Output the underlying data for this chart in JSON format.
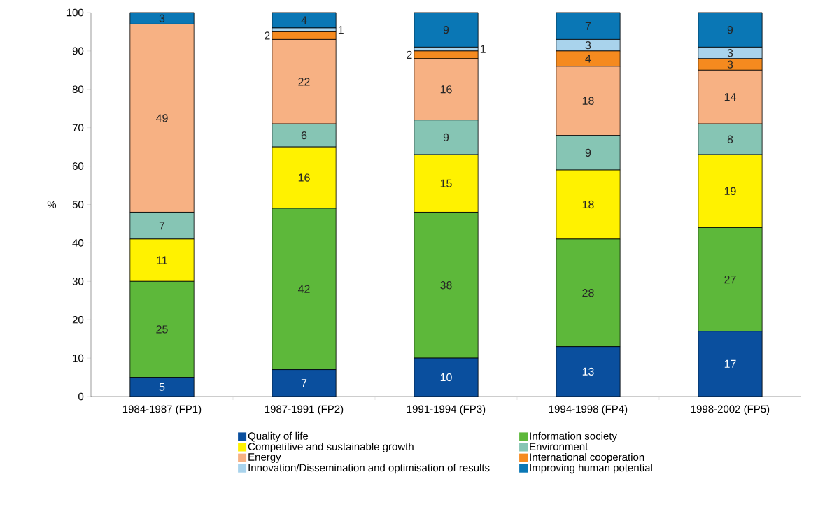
{
  "chart_data": {
    "type": "bar",
    "stacked": true,
    "ylabel": "%",
    "categories": [
      "1984-1987 (FP1)",
      "1987-1991 (FP2)",
      "1991-1994 (FP3)",
      "1994-1998 (FP4)",
      "1998-2002 (FP5)"
    ],
    "series": [
      {
        "name": "Quality of life",
        "color": "#0a4f9e",
        "values": [
          5,
          7,
          10,
          13,
          17
        ]
      },
      {
        "name": "Information society",
        "color": "#5db83a",
        "values": [
          25,
          42,
          38,
          28,
          27
        ]
      },
      {
        "name": "Competitive and sustainable growth",
        "color": "#fff200",
        "values": [
          11,
          16,
          15,
          18,
          19
        ]
      },
      {
        "name": "Environment",
        "color": "#86c5b4",
        "values": [
          7,
          6,
          9,
          9,
          8
        ]
      },
      {
        "name": "Energy",
        "color": "#f7b183",
        "values": [
          49,
          22,
          16,
          18,
          14
        ]
      },
      {
        "name": "International cooperation",
        "color": "#f58a1f",
        "values": [
          null,
          2,
          2,
          4,
          3
        ]
      },
      {
        "name": "Innovation/Dissemination and optimisation of results",
        "color": "#a9d3ec",
        "values": [
          null,
          1,
          1,
          3,
          3
        ]
      },
      {
        "name": "Improving human potential",
        "color": "#0a77b5",
        "values": [
          3,
          4,
          9,
          7,
          9
        ]
      }
    ],
    "ylim": [
      0,
      100
    ],
    "yticks": [
      0,
      10,
      20,
      30,
      40,
      50,
      60,
      70,
      80,
      90,
      100
    ],
    "data_labels": true,
    "legend": "bottom",
    "grid": false
  }
}
